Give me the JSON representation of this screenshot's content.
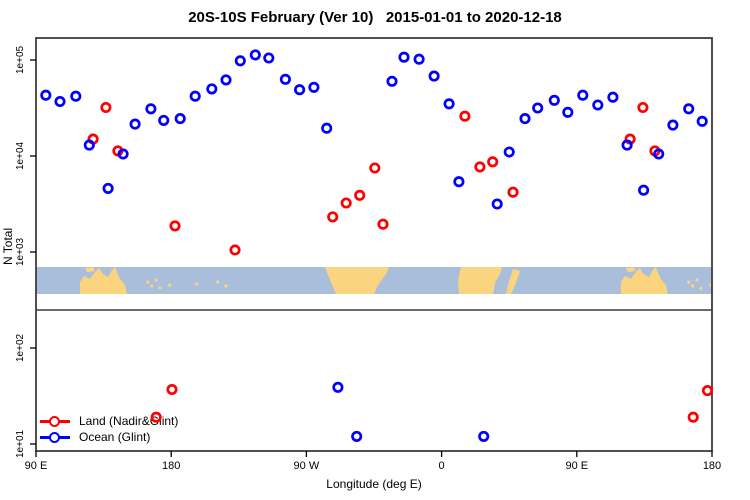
{
  "title": "20S-10S February (Ver 10)   2015-01-01 to 2020-12-18",
  "axes": {
    "x": {
      "label": "Longitude (deg E)",
      "range": [
        90,
        540
      ],
      "note": "axis spans 450 deg: 90E -> 180 -> 90W -> 0 -> 90E -> 180",
      "ticks": [
        {
          "value": 90,
          "label": "90 E"
        },
        {
          "value": 180,
          "label": "180"
        },
        {
          "value": 270,
          "label": "90 W"
        },
        {
          "value": 360,
          "label": "0"
        },
        {
          "value": 450,
          "label": "90 E"
        },
        {
          "value": 540,
          "label": "180"
        }
      ]
    },
    "y": {
      "label": "N Total",
      "scale": "log",
      "range": [
        10,
        100000
      ],
      "ticks": [
        {
          "value": 10,
          "label": "1e+01"
        },
        {
          "value": 100,
          "label": "1e+02"
        },
        {
          "value": 1000,
          "label": "1e+03"
        },
        {
          "value": 10000,
          "label": "1e+04"
        },
        {
          "value": 100000,
          "label": "1e+05"
        }
      ]
    }
  },
  "legend": {
    "items": [
      {
        "label": "Land (Nadir&Glint)",
        "color": "#ff0000"
      },
      {
        "label": "Ocean (Glint)",
        "color": "#0000ff"
      }
    ]
  },
  "colors": {
    "frame": "#3d3d3d",
    "tick": "#000000",
    "background": "#ffffff"
  },
  "map_band": {
    "description": "world map strip for latitude band 20S-10S drawn across plot",
    "ocean_color": "#a9bedb",
    "land_color": "#fbd480",
    "land_polygons": [
      [
        [
          119.3,
          1
        ],
        [
          119.3,
          0.56
        ],
        [
          122,
          0.33
        ],
        [
          125.9,
          0.44
        ],
        [
          129.3,
          0.19
        ],
        [
          131.9,
          0.04
        ],
        [
          134.6,
          0.26
        ],
        [
          137.9,
          0.37
        ],
        [
          140.6,
          0.11
        ],
        [
          142.6,
          0
        ],
        [
          143.9,
          0.19
        ],
        [
          145.9,
          0.44
        ],
        [
          149.3,
          0.67
        ],
        [
          150.6,
          1
        ]
      ],
      [
        [
          122.6,
          0.04
        ],
        [
          127.9,
          0
        ],
        [
          129.3,
          0.15
        ],
        [
          124,
          0.19
        ]
      ],
      [
        [
          282.4,
          0
        ],
        [
          325,
          0
        ],
        [
          323,
          0.26
        ],
        [
          319.7,
          0.52
        ],
        [
          317,
          0.74
        ],
        [
          315,
          1
        ],
        [
          289.7,
          1
        ],
        [
          285.7,
          0.48
        ]
      ],
      [
        [
          372.9,
          0
        ],
        [
          400.2,
          0
        ],
        [
          398.9,
          0.26
        ],
        [
          395.6,
          0.59
        ],
        [
          394.2,
          1
        ],
        [
          371.6,
          1
        ],
        [
          370.9,
          0.48
        ]
      ],
      [
        [
          407.5,
          0.07
        ],
        [
          412.2,
          0.15
        ],
        [
          409.5,
          0.59
        ],
        [
          406.2,
          1
        ],
        [
          402.9,
          1
        ],
        [
          404.9,
          0.52
        ]
      ],
      [
        [
          479.3,
          1
        ],
        [
          479.3,
          0.56
        ],
        [
          482,
          0.33
        ],
        [
          485.9,
          0.44
        ],
        [
          489.3,
          0.19
        ],
        [
          491.9,
          0.04
        ],
        [
          494.6,
          0.26
        ],
        [
          497.9,
          0.37
        ],
        [
          500.6,
          0.11
        ],
        [
          502.6,
          0
        ],
        [
          503.9,
          0.19
        ],
        [
          505.9,
          0.44
        ],
        [
          509.3,
          0.67
        ],
        [
          510.6,
          1
        ]
      ],
      [
        [
          482.6,
          0.04
        ],
        [
          487.9,
          0
        ],
        [
          489.3,
          0.15
        ],
        [
          484,
          0.19
        ]
      ]
    ],
    "island_dots": [
      [
        164.5,
        0.56
      ],
      [
        167,
        0.7
      ],
      [
        170,
        0.48
      ],
      [
        172.5,
        0.78
      ],
      [
        179,
        0.67
      ],
      [
        197,
        0.63
      ],
      [
        211,
        0.56
      ],
      [
        216.5,
        0.7
      ],
      [
        524.5,
        0.56
      ],
      [
        527,
        0.7
      ],
      [
        530,
        0.48
      ],
      [
        532.5,
        0.78
      ],
      [
        539,
        0.67
      ]
    ]
  },
  "chart_data": {
    "type": "scatter",
    "title": "20S-10S February (Ver 10)   2015-01-01 to 2020-12-18",
    "xlabel": "Longitude (deg E)",
    "ylabel": "N Total",
    "xlim": [
      90,
      540
    ],
    "ylim": [
      10,
      100000
    ],
    "yscale": "log",
    "grid": false,
    "legend_position": "bottom-left inside plot",
    "marker": "open-circle",
    "series": [
      {
        "name": "Land (Nadir&Glint)",
        "color": "#ff0000",
        "points": [
          [
            136.5,
            32000
          ],
          [
            128,
            15000
          ],
          [
            144.5,
            11300
          ],
          [
            182.5,
            1870
          ],
          [
            222.5,
            1050
          ],
          [
            287.5,
            2320
          ],
          [
            296.5,
            3240
          ],
          [
            305.5,
            3900
          ],
          [
            315.5,
            7500
          ],
          [
            321,
            1950
          ],
          [
            375.5,
            26000
          ],
          [
            385.5,
            7700
          ],
          [
            394,
            8700
          ],
          [
            407.5,
            4200
          ],
          [
            485.5,
            15000
          ],
          [
            494,
            32000
          ],
          [
            502,
            11300
          ],
          [
            180.5,
            37
          ],
          [
            170,
            19
          ],
          [
            527.5,
            19
          ],
          [
            537,
            36
          ]
        ]
      },
      {
        "name": "Ocean (Glint)",
        "color": "#0000ff",
        "points": [
          [
            96.5,
            43000
          ],
          [
            106,
            37000
          ],
          [
            116.5,
            42000
          ],
          [
            125.5,
            13000
          ],
          [
            138,
            4600
          ],
          [
            148,
            10500
          ],
          [
            156,
            21500
          ],
          [
            166.5,
            31000
          ],
          [
            175,
            23500
          ],
          [
            186,
            24500
          ],
          [
            196,
            42000
          ],
          [
            207,
            50000
          ],
          [
            216.5,
            62000
          ],
          [
            226,
            98000
          ],
          [
            236,
            113000
          ],
          [
            245,
            105000
          ],
          [
            256,
            63000
          ],
          [
            265.5,
            49000
          ],
          [
            275,
            52000
          ],
          [
            283.5,
            19500
          ],
          [
            327,
            60000
          ],
          [
            335,
            107000
          ],
          [
            345,
            102000
          ],
          [
            355,
            68000
          ],
          [
            365,
            35000
          ],
          [
            371.5,
            5400
          ],
          [
            397,
            3160
          ],
          [
            405,
            11000
          ],
          [
            415.5,
            24500
          ],
          [
            424,
            31600
          ],
          [
            435,
            38000
          ],
          [
            444,
            28500
          ],
          [
            454,
            43000
          ],
          [
            464,
            34000
          ],
          [
            474,
            41000
          ],
          [
            483.5,
            13000
          ],
          [
            494.5,
            4400
          ],
          [
            504.5,
            10500
          ],
          [
            514,
            21000
          ],
          [
            524.5,
            31000
          ],
          [
            533.5,
            23000
          ],
          [
            291,
            39
          ],
          [
            303.5,
            12
          ],
          [
            388,
            12
          ]
        ]
      }
    ]
  }
}
